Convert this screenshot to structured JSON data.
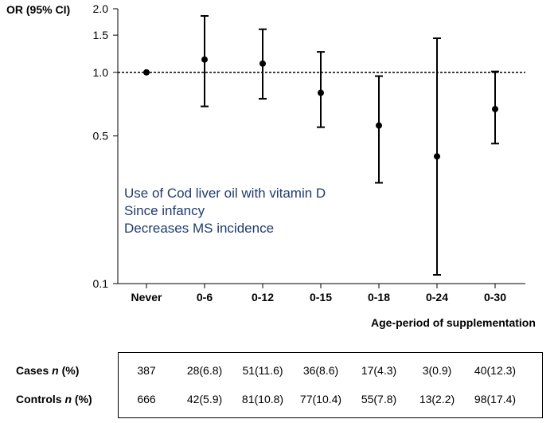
{
  "chart_data": {
    "type": "scatter",
    "subtype": "forest-plot-with-error-bars",
    "y_scale": "log",
    "ylabel": "OR (95% CI)",
    "xlabel": "Age-period of supplementation",
    "ylim": [
      0.1,
      2.0
    ],
    "yticks": [
      0.1,
      0.5,
      1.0,
      1.5,
      2.0
    ],
    "ytick_labels": [
      "0.1",
      "0.5",
      "1.0",
      "1.5",
      "2.0"
    ],
    "reference_line": 1.0,
    "categories": [
      "Never",
      "0-6",
      "0-12",
      "0-15",
      "0-18",
      "0-24",
      "0-30"
    ],
    "or": [
      1.0,
      1.15,
      1.1,
      0.8,
      0.56,
      0.4,
      0.67
    ],
    "ci_low": [
      null,
      0.69,
      0.75,
      0.55,
      0.3,
      0.11,
      0.46
    ],
    "ci_high": [
      null,
      1.85,
      1.6,
      1.25,
      0.96,
      1.45,
      1.01
    ],
    "annotation": [
      "Use of Cod liver oil with vitamin D",
      "Since infancy",
      "Decreases MS incidence"
    ]
  },
  "table": {
    "rows": [
      {
        "label": "Cases",
        "n": "n",
        "pct": "(%)",
        "values": [
          "387",
          "28(6.8)",
          "51(11.6)",
          "36(8.6)",
          "17(4.3)",
          "3(0.9)",
          "40(12.3)"
        ]
      },
      {
        "label": "Controls",
        "n": "n",
        "pct": "(%)",
        "values": [
          "666",
          "42(5.9)",
          "81(10.8)",
          "77(10.4)",
          "55(7.8)",
          "13(2.2)",
          "98(17.4)"
        ]
      }
    ]
  }
}
